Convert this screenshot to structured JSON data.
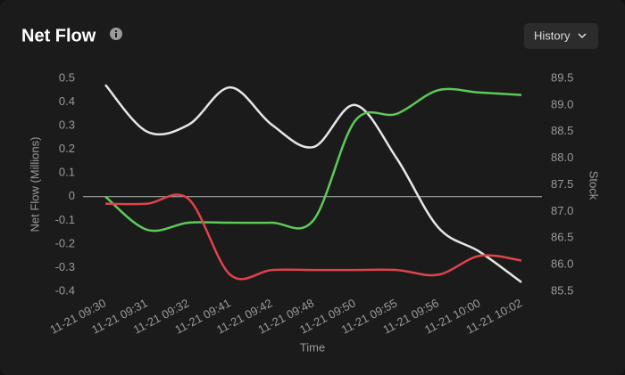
{
  "chart_data": {
    "type": "line",
    "title": "Net Flow",
    "categories": [
      "11-21 09:30",
      "11-21 09:31",
      "11-21 09:32",
      "11-21 09:41",
      "11-21 09:42",
      "11-21 09:48",
      "11-21 09:50",
      "11-21 09:55",
      "11-21 09:56",
      "11-21 10:00",
      "11-21 10:02"
    ],
    "x_label": "Time",
    "y_label": "Net Flow (Millions)",
    "y2_label": "Stock",
    "ylim": [
      -0.4,
      0.5
    ],
    "yticks": [
      0.5,
      0.4,
      0.3,
      0.2,
      0.1,
      0,
      -0.1,
      -0.2,
      -0.3,
      -0.4
    ],
    "y2lim": [
      85.5,
      89.5
    ],
    "y2ticks": [
      89.5,
      {
        "value": 89,
        "label": "89.0"
      },
      88.5,
      {
        "value": 88,
        "label": "88.0"
      },
      87.5,
      {
        "value": 87,
        "label": "87.0"
      },
      86.5,
      {
        "value": 86,
        "label": "86.0"
      },
      85.5
    ],
    "zero_line": true,
    "series": [
      {
        "color": "#e6e6e6",
        "axis": "y2",
        "values": [
          89.38,
          88.5,
          88.63,
          89.33,
          88.63,
          88.21,
          89.0,
          88.0,
          86.7,
          86.24,
          85.67
        ]
      },
      {
        "color": "#5ec95a",
        "values": [
          0,
          -0.14,
          -0.11,
          -0.11,
          -0.11,
          -0.1,
          0.32,
          0.35,
          0.45,
          0.44,
          0.43
        ]
      },
      {
        "color": "#e0434a",
        "values": [
          -0.03,
          -0.03,
          -0.01,
          -0.33,
          -0.31,
          -0.31,
          -0.31,
          -0.31,
          -0.33,
          -0.25,
          -0.27
        ]
      }
    ]
  },
  "button": "History"
}
